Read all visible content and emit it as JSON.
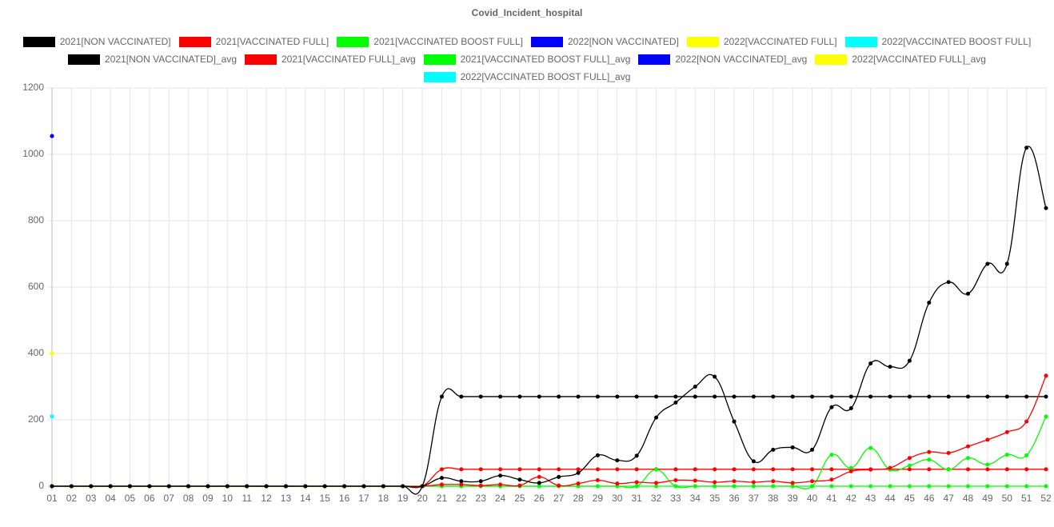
{
  "chart_data": {
    "type": "line",
    "title": "Covid_Incident_hospital",
    "categories": [
      "01",
      "02",
      "03",
      "04",
      "05",
      "06",
      "07",
      "08",
      "09",
      "10",
      "11",
      "12",
      "13",
      "14",
      "15",
      "16",
      "17",
      "18",
      "19",
      "20",
      "21",
      "22",
      "23",
      "24",
      "25",
      "26",
      "27",
      "28",
      "29",
      "30",
      "31",
      "32",
      "33",
      "34",
      "35",
      "36",
      "37",
      "38",
      "39",
      "40",
      "41",
      "42",
      "43",
      "44",
      "45",
      "46",
      "47",
      "48",
      "49",
      "50",
      "51",
      "52"
    ],
    "ylim": [
      0,
      1200
    ],
    "yticks": [
      0,
      200,
      400,
      600,
      800,
      1000,
      1200
    ],
    "grid": true,
    "series": [
      {
        "name": "2021[NON VACCINATED]",
        "color": "#000000",
        "values": [
          0,
          0,
          0,
          0,
          0,
          0,
          0,
          0,
          0,
          0,
          0,
          0,
          0,
          0,
          0,
          0,
          0,
          0,
          0,
          0,
          25,
          15,
          15,
          32,
          20,
          10,
          28,
          40,
          93,
          78,
          92,
          207,
          252,
          300,
          330,
          195,
          75,
          110,
          117,
          110,
          238,
          235,
          370,
          360,
          378,
          553,
          615,
          580,
          670,
          670,
          1020,
          838
        ]
      },
      {
        "name": "2021[VACCINATED FULL]",
        "color": "#ff0000",
        "values": [
          0,
          0,
          0,
          0,
          0,
          0,
          0,
          0,
          0,
          0,
          0,
          0,
          0,
          0,
          0,
          0,
          0,
          0,
          0,
          0,
          5,
          5,
          2,
          5,
          2,
          28,
          2,
          8,
          18,
          8,
          12,
          10,
          18,
          17,
          12,
          15,
          12,
          15,
          10,
          15,
          20,
          45,
          50,
          55,
          85,
          103,
          100,
          120,
          140,
          163,
          195,
          333
        ]
      },
      {
        "name": "2021[VACCINATED BOOST FULL]",
        "color": "#00ff00",
        "values": [
          0,
          0,
          0,
          0,
          0,
          0,
          0,
          0,
          0,
          0,
          0,
          0,
          0,
          0,
          0,
          0,
          0,
          0,
          0,
          0,
          0,
          0,
          0,
          0,
          0,
          0,
          0,
          0,
          0,
          0,
          0,
          50,
          0,
          0,
          0,
          0,
          0,
          0,
          0,
          0,
          95,
          55,
          115,
          50,
          62,
          80,
          50,
          85,
          65,
          95,
          93,
          210
        ]
      },
      {
        "name": "2022[NON VACCINATED]",
        "color": "#0000ff",
        "values": [
          1055,
          null,
          null,
          null,
          null,
          null,
          null,
          null,
          null,
          null,
          null,
          null,
          null,
          null,
          null,
          null,
          null,
          null,
          null,
          null,
          null,
          null,
          null,
          null,
          null,
          null,
          null,
          null,
          null,
          null,
          null,
          null,
          null,
          null,
          null,
          null,
          null,
          null,
          null,
          null,
          null,
          null,
          null,
          null,
          null,
          null,
          null,
          null,
          null,
          null,
          null,
          null
        ]
      },
      {
        "name": "2022[VACCINATED FULL]",
        "color": "#ffff00",
        "values": [
          400,
          null,
          null,
          null,
          null,
          null,
          null,
          null,
          null,
          null,
          null,
          null,
          null,
          null,
          null,
          null,
          null,
          null,
          null,
          null,
          null,
          null,
          null,
          null,
          null,
          null,
          null,
          null,
          null,
          null,
          null,
          null,
          null,
          null,
          null,
          null,
          null,
          null,
          null,
          null,
          null,
          null,
          null,
          null,
          null,
          null,
          null,
          null,
          null,
          null,
          null,
          null
        ]
      },
      {
        "name": "2022[VACCINATED BOOST FULL]",
        "color": "#00ffff",
        "values": [
          210,
          null,
          null,
          null,
          null,
          null,
          null,
          null,
          null,
          null,
          null,
          null,
          null,
          null,
          null,
          null,
          null,
          null,
          null,
          null,
          null,
          null,
          null,
          null,
          null,
          null,
          null,
          null,
          null,
          null,
          null,
          null,
          null,
          null,
          null,
          null,
          null,
          null,
          null,
          null,
          null,
          null,
          null,
          null,
          null,
          null,
          null,
          null,
          null,
          null,
          null,
          null
        ]
      },
      {
        "name": "2021[NON VACCINATED]_avg",
        "color": "#000000",
        "values": [
          0,
          0,
          0,
          0,
          0,
          0,
          0,
          0,
          0,
          0,
          0,
          0,
          0,
          0,
          0,
          0,
          0,
          0,
          0,
          0,
          270,
          270,
          270,
          270,
          270,
          270,
          270,
          270,
          270,
          270,
          270,
          270,
          270,
          270,
          270,
          270,
          270,
          270,
          270,
          270,
          270,
          270,
          270,
          270,
          270,
          270,
          270,
          270,
          270,
          270,
          270,
          270
        ]
      },
      {
        "name": "2021[VACCINATED FULL]_avg",
        "color": "#ff0000",
        "values": [
          0,
          0,
          0,
          0,
          0,
          0,
          0,
          0,
          0,
          0,
          0,
          0,
          0,
          0,
          0,
          0,
          0,
          0,
          0,
          0,
          51,
          51,
          51,
          51,
          51,
          51,
          51,
          51,
          51,
          51,
          51,
          51,
          51,
          51,
          51,
          51,
          51,
          51,
          51,
          51,
          51,
          51,
          51,
          51,
          51,
          51,
          51,
          51,
          51,
          51,
          51,
          51
        ]
      },
      {
        "name": "2021[VACCINATED BOOST FULL]_avg",
        "color": "#00ff00",
        "values": [
          0,
          0,
          0,
          0,
          0,
          0,
          0,
          0,
          0,
          0,
          0,
          0,
          0,
          0,
          0,
          0,
          0,
          0,
          0,
          0,
          0,
          0,
          0,
          0,
          0,
          0,
          0,
          0,
          0,
          0,
          0,
          0,
          0,
          0,
          0,
          0,
          0,
          0,
          0,
          0,
          0,
          0,
          0,
          0,
          0,
          0,
          0,
          0,
          0,
          0,
          0,
          0
        ]
      },
      {
        "name": "2022[NON VACCINATED]_avg",
        "color": "#0000ff",
        "values": [
          1055,
          null,
          null,
          null,
          null,
          null,
          null,
          null,
          null,
          null,
          null,
          null,
          null,
          null,
          null,
          null,
          null,
          null,
          null,
          null,
          null,
          null,
          null,
          null,
          null,
          null,
          null,
          null,
          null,
          null,
          null,
          null,
          null,
          null,
          null,
          null,
          null,
          null,
          null,
          null,
          null,
          null,
          null,
          null,
          null,
          null,
          null,
          null,
          null,
          null,
          null,
          null
        ]
      },
      {
        "name": "2022[VACCINATED FULL]_avg",
        "color": "#ffff00",
        "values": [
          400,
          null,
          null,
          null,
          null,
          null,
          null,
          null,
          null,
          null,
          null,
          null,
          null,
          null,
          null,
          null,
          null,
          null,
          null,
          null,
          null,
          null,
          null,
          null,
          null,
          null,
          null,
          null,
          null,
          null,
          null,
          null,
          null,
          null,
          null,
          null,
          null,
          null,
          null,
          null,
          null,
          null,
          null,
          null,
          null,
          null,
          null,
          null,
          null,
          null,
          null,
          null
        ]
      },
      {
        "name": "2022[VACCINATED BOOST FULL]_avg",
        "color": "#00ffff",
        "values": [
          210,
          null,
          null,
          null,
          null,
          null,
          null,
          null,
          null,
          null,
          null,
          null,
          null,
          null,
          null,
          null,
          null,
          null,
          null,
          null,
          null,
          null,
          null,
          null,
          null,
          null,
          null,
          null,
          null,
          null,
          null,
          null,
          null,
          null,
          null,
          null,
          null,
          null,
          null,
          null,
          null,
          null,
          null,
          null,
          null,
          null,
          null,
          null,
          null,
          null,
          null,
          null
        ]
      }
    ]
  }
}
